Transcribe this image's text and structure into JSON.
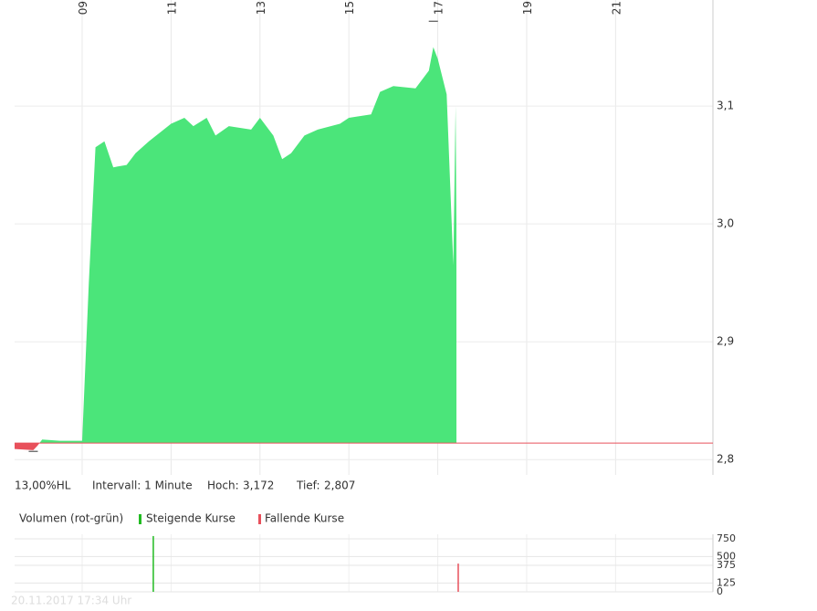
{
  "chart_data": [
    {
      "type": "area",
      "x": [
        7.48,
        7.9,
        8.0,
        8.1,
        8.5,
        9.0,
        9.15,
        9.3,
        9.5,
        9.7,
        10.0,
        10.2,
        10.5,
        11.0,
        11.3,
        11.5,
        11.8,
        12.0,
        12.3,
        12.8,
        13.0,
        13.3,
        13.5,
        13.7,
        14.0,
        14.3,
        14.8,
        15.0,
        15.5,
        15.7,
        16.0,
        16.5,
        16.8,
        16.9,
        17.0,
        17.2,
        17.35,
        17.4,
        17.42
      ],
      "values": [
        2.809,
        2.808,
        2.812,
        2.817,
        2.816,
        2.816,
        2.95,
        3.065,
        3.07,
        3.048,
        3.05,
        3.06,
        3.07,
        3.085,
        3.09,
        3.083,
        3.09,
        3.075,
        3.083,
        3.08,
        3.09,
        3.075,
        3.055,
        3.06,
        3.075,
        3.08,
        3.085,
        3.09,
        3.093,
        3.112,
        3.117,
        3.115,
        3.13,
        3.15,
        3.14,
        3.11,
        2.965,
        3.1,
        3.0
      ],
      "baseline": 2.814,
      "up_color": "#4be57a",
      "down_color": "#e8505b",
      "line_color": "#e8505b",
      "xlim": [
        7.48,
        23.19
      ],
      "xticks": [
        {
          "value": 9,
          "label": "09"
        },
        {
          "value": 11,
          "label": "11"
        },
        {
          "value": 13,
          "label": "13"
        },
        {
          "value": 15,
          "label": "15"
        },
        {
          "value": 17,
          "label": "17"
        },
        {
          "value": 19,
          "label": "19"
        },
        {
          "value": 21,
          "label": "21"
        }
      ],
      "ylim": [
        2.787,
        3.19
      ],
      "yticks": [
        {
          "value": 2.8,
          "label": "2,8"
        },
        {
          "value": 2.9,
          "label": "2,9"
        },
        {
          "value": 3.0,
          "label": "3,0"
        },
        {
          "value": 3.1,
          "label": "3,1"
        }
      ],
      "grid": true,
      "info": {
        "range": "13,00%HL",
        "interval": "Intervall: 1 Minute",
        "high_label": "Hoch:",
        "high": {
          "value": 3.172,
          "label": "3,172"
        },
        "low_label": "Tief:",
        "low": {
          "value": 2.807,
          "label": "2,807"
        }
      }
    },
    {
      "type": "bar",
      "title": "Volumen (rot-grün)",
      "x": [
        10.6,
        17.46
      ],
      "series": [
        {
          "name": "Steigende Kurse",
          "color": "#22bb22",
          "values": [
            790,
            null
          ]
        },
        {
          "name": "Fallende Kurse",
          "color": "#e8505b",
          "values": [
            null,
            400
          ]
        }
      ],
      "xlim": [
        7.48,
        23.19
      ],
      "ylim": [
        0,
        815
      ],
      "yticks": [
        0,
        125,
        375,
        500,
        750
      ],
      "grid": true,
      "footnote": "20.11.2017 17:34 Uhr"
    }
  ]
}
